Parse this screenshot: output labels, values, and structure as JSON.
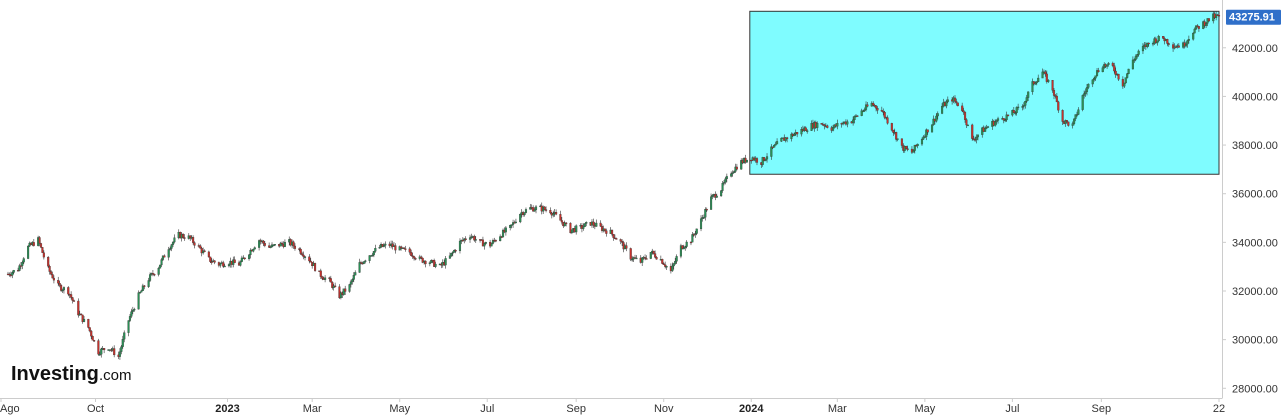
{
  "branding": {
    "logo_main": "Investing",
    "logo_suffix": ".com"
  },
  "colors": {
    "up": "#2a8f55",
    "down": "#c4322d",
    "wick": "#333333",
    "highlight_fill": "#7ffcff",
    "highlight_stroke": "#333333",
    "last_price_bg": "#2f6fc9",
    "axis": "#cccccc"
  },
  "chart_data": {
    "type": "candlestick",
    "x_range": [
      "2022-08-01",
      "2024-11-22"
    ],
    "ylim": [
      27600,
      43800
    ],
    "last_price": 43275.91,
    "last_price_label": "43275.91",
    "y_ticks": [
      {
        "value": 28000,
        "label": "28000.00"
      },
      {
        "value": 30000,
        "label": "30000.00"
      },
      {
        "value": 32000,
        "label": "32000.00"
      },
      {
        "value": 34000,
        "label": "34000.00"
      },
      {
        "value": 36000,
        "label": "36000.00"
      },
      {
        "value": 38000,
        "label": "38000.00"
      },
      {
        "value": 40000,
        "label": "40000.00"
      },
      {
        "value": 42000,
        "label": "42000.00"
      }
    ],
    "x_ticks": [
      {
        "date": "2022-08-01",
        "label": "Ago",
        "bold": false
      },
      {
        "date": "2022-10-01",
        "label": "Oct",
        "bold": false
      },
      {
        "date": "2023-01-01",
        "label": "2023",
        "bold": true
      },
      {
        "date": "2023-03-01",
        "label": "Mar",
        "bold": false
      },
      {
        "date": "2023-05-01",
        "label": "May",
        "bold": false
      },
      {
        "date": "2023-07-01",
        "label": "Jul",
        "bold": false
      },
      {
        "date": "2023-09-01",
        "label": "Sep",
        "bold": false
      },
      {
        "date": "2023-11-01",
        "label": "Nov",
        "bold": false
      },
      {
        "date": "2024-01-01",
        "label": "2024",
        "bold": true
      },
      {
        "date": "2024-03-01",
        "label": "Mar",
        "bold": false
      },
      {
        "date": "2024-05-01",
        "label": "May",
        "bold": false
      },
      {
        "date": "2024-07-01",
        "label": "Jul",
        "bold": false
      },
      {
        "date": "2024-09-01",
        "label": "Sep",
        "bold": false
      },
      {
        "date": "2024-11-22",
        "label": "22",
        "bold": false
      }
    ],
    "highlight": {
      "x_start": "2023-12-31",
      "x_end": "2024-11-22",
      "y_low": 36800,
      "y_high": 43500
    },
    "close_series": [
      [
        "2022-08-01",
        32700
      ],
      [
        "2022-08-08",
        32900
      ],
      [
        "2022-08-15",
        33800
      ],
      [
        "2022-08-22",
        34100
      ],
      [
        "2022-08-29",
        32900
      ],
      [
        "2022-09-05",
        32200
      ],
      [
        "2022-09-12",
        32000
      ],
      [
        "2022-09-19",
        31100
      ],
      [
        "2022-09-26",
        30500
      ],
      [
        "2022-10-03",
        29500
      ],
      [
        "2022-10-10",
        29700
      ],
      [
        "2022-10-17",
        29300
      ],
      [
        "2022-10-24",
        30800
      ],
      [
        "2022-10-31",
        31800
      ],
      [
        "2022-11-07",
        32500
      ],
      [
        "2022-11-14",
        33000
      ],
      [
        "2022-11-21",
        33800
      ],
      [
        "2022-11-28",
        34300
      ],
      [
        "2022-12-05",
        34200
      ],
      [
        "2022-12-12",
        33800
      ],
      [
        "2022-12-19",
        33300
      ],
      [
        "2022-12-26",
        33100
      ],
      [
        "2023-01-02",
        33200
      ],
      [
        "2023-01-09",
        33100
      ],
      [
        "2023-01-16",
        33600
      ],
      [
        "2023-01-23",
        34100
      ],
      [
        "2023-01-30",
        33800
      ],
      [
        "2023-02-06",
        33900
      ],
      [
        "2023-02-13",
        34000
      ],
      [
        "2023-02-20",
        33700
      ],
      [
        "2023-02-27",
        33300
      ],
      [
        "2023-03-06",
        32700
      ],
      [
        "2023-03-13",
        32400
      ],
      [
        "2023-03-20",
        31800
      ],
      [
        "2023-03-27",
        32200
      ],
      [
        "2023-04-03",
        33100
      ],
      [
        "2023-04-10",
        33500
      ],
      [
        "2023-04-17",
        33800
      ],
      [
        "2023-04-24",
        33900
      ],
      [
        "2023-05-01",
        33700
      ],
      [
        "2023-05-08",
        33600
      ],
      [
        "2023-05-15",
        33300
      ],
      [
        "2023-05-22",
        33200
      ],
      [
        "2023-05-29",
        33000
      ],
      [
        "2023-06-05",
        33400
      ],
      [
        "2023-06-12",
        34000
      ],
      [
        "2023-06-19",
        34300
      ],
      [
        "2023-06-26",
        34000
      ],
      [
        "2023-07-03",
        33900
      ],
      [
        "2023-07-10",
        34300
      ],
      [
        "2023-07-17",
        34600
      ],
      [
        "2023-07-24",
        35200
      ],
      [
        "2023-07-31",
        35400
      ],
      [
        "2023-08-07",
        35400
      ],
      [
        "2023-08-14",
        35300
      ],
      [
        "2023-08-21",
        34900
      ],
      [
        "2023-08-28",
        34500
      ],
      [
        "2023-09-04",
        34600
      ],
      [
        "2023-09-11",
        34800
      ],
      [
        "2023-09-18",
        34600
      ],
      [
        "2023-09-25",
        34400
      ],
      [
        "2023-10-02",
        34000
      ],
      [
        "2023-10-09",
        33400
      ],
      [
        "2023-10-16",
        33200
      ],
      [
        "2023-10-23",
        33600
      ],
      [
        "2023-10-30",
        33300
      ],
      [
        "2023-11-06",
        32800
      ],
      [
        "2023-11-13",
        33800
      ],
      [
        "2023-11-20",
        34100
      ],
      [
        "2023-11-27",
        34900
      ],
      [
        "2023-12-04",
        35800
      ],
      [
        "2023-12-11",
        36200
      ],
      [
        "2023-12-18",
        36900
      ],
      [
        "2023-12-25",
        37300
      ],
      [
        "2024-01-01",
        37500
      ],
      [
        "2024-01-08",
        37300
      ],
      [
        "2024-01-15",
        37800
      ],
      [
        "2024-01-22",
        38200
      ],
      [
        "2024-01-29",
        38400
      ],
      [
        "2024-02-05",
        38600
      ],
      [
        "2024-02-12",
        38800
      ],
      [
        "2024-02-19",
        38900
      ],
      [
        "2024-02-26",
        38700
      ],
      [
        "2024-03-04",
        38900
      ],
      [
        "2024-03-11",
        39000
      ],
      [
        "2024-03-18",
        39400
      ],
      [
        "2024-03-25",
        39700
      ],
      [
        "2024-04-01",
        39400
      ],
      [
        "2024-04-08",
        38700
      ],
      [
        "2024-04-15",
        37900
      ],
      [
        "2024-04-22",
        37700
      ],
      [
        "2024-04-29",
        38300
      ],
      [
        "2024-05-06",
        38900
      ],
      [
        "2024-05-13",
        39600
      ],
      [
        "2024-05-20",
        39900
      ],
      [
        "2024-05-27",
        39500
      ],
      [
        "2024-06-03",
        38200
      ],
      [
        "2024-06-10",
        38600
      ],
      [
        "2024-06-17",
        38900
      ],
      [
        "2024-06-24",
        39100
      ],
      [
        "2024-07-01",
        39300
      ],
      [
        "2024-07-08",
        39600
      ],
      [
        "2024-07-15",
        40500
      ],
      [
        "2024-07-22",
        41000
      ],
      [
        "2024-07-29",
        40300
      ],
      [
        "2024-08-05",
        39000
      ],
      [
        "2024-08-12",
        38800
      ],
      [
        "2024-08-19",
        40000
      ],
      [
        "2024-08-26",
        40800
      ],
      [
        "2024-09-02",
        41300
      ],
      [
        "2024-09-09",
        41200
      ],
      [
        "2024-09-16",
        40500
      ],
      [
        "2024-09-23",
        41500
      ],
      [
        "2024-09-30",
        42000
      ],
      [
        "2024-10-07",
        42300
      ],
      [
        "2024-10-14",
        42400
      ],
      [
        "2024-10-21",
        42100
      ],
      [
        "2024-10-28",
        42100
      ],
      [
        "2024-11-04",
        42700
      ],
      [
        "2024-11-11",
        43000
      ],
      [
        "2024-11-18",
        43275.91
      ],
      [
        "2024-11-22",
        43275.91
      ]
    ]
  }
}
